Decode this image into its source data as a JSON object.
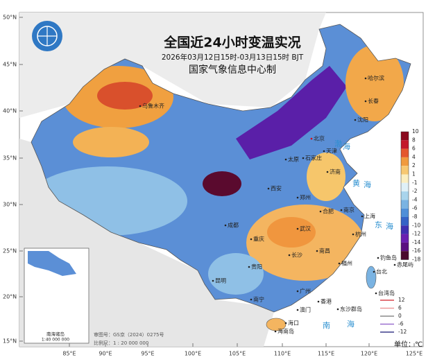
{
  "header": {
    "title": "全国近24小时变温实况",
    "subtitle": "2026年03月12日15时-03月13日15时 BJT",
    "agency": "国家气象信息中心制"
  },
  "lat_labels": [
    "50°N",
    "45°N",
    "40°N",
    "35°N",
    "30°N",
    "25°N",
    "20°N",
    "15°N"
  ],
  "lon_labels": [
    "85°E",
    "90°E",
    "95°E",
    "100°E",
    "105°E",
    "110°E",
    "115°E",
    "120°E",
    "125°E"
  ],
  "cities": [
    "乌鲁木齐",
    "哈尔滨",
    "长春",
    "沈阳",
    "北京",
    "天津",
    "石家庄",
    "济南",
    "太原",
    "郑州",
    "西安",
    "合肥",
    "南京",
    "上海",
    "杭州",
    "武汉",
    "成都",
    "重庆",
    "长沙",
    "南昌",
    "福州",
    "贵阳",
    "昆明",
    "南宁",
    "广州",
    "香港",
    "澳门",
    "海口",
    "台北",
    "东沙群岛",
    "钓鱼岛",
    "赤尾屿",
    "海南岛",
    "台湾岛"
  ],
  "seas": [
    "渤",
    "海",
    "黄",
    "海",
    "东",
    "海",
    "南",
    "海"
  ],
  "inset": {
    "title": "南海诸岛",
    "scale": "1:40 000 000"
  },
  "footer": {
    "review": "审图号：GS京（2024）0275号",
    "scale": "比例尺：1 : 20 000 000",
    "unit": "单位：℃"
  },
  "colorbar": {
    "ticks": [
      10,
      8,
      6,
      4,
      2,
      1,
      -1,
      -2,
      -4,
      -6,
      -8,
      -10,
      -12,
      -14,
      -16,
      -18
    ],
    "colors": [
      "#8b0a1e",
      "#c3182b",
      "#e4572e",
      "#f09a3e",
      "#f7c872",
      "#fbeec0",
      "#dff0f7",
      "#a9d4ec",
      "#7ab3e2",
      "#4f8fd8",
      "#3563c6",
      "#3f2fb0",
      "#6a1fb0",
      "#5a0f80",
      "#4a0a2e"
    ]
  },
  "line_legend": {
    "items": [
      {
        "label": 12,
        "color": "#d9434b"
      },
      {
        "label": 6,
        "color": "#ee9a9a"
      },
      {
        "label": 0,
        "color": "#8a8a8a"
      },
      {
        "label": -6,
        "color": "#9a70d0"
      },
      {
        "label": -12,
        "color": "#3b3b8a"
      }
    ]
  }
}
